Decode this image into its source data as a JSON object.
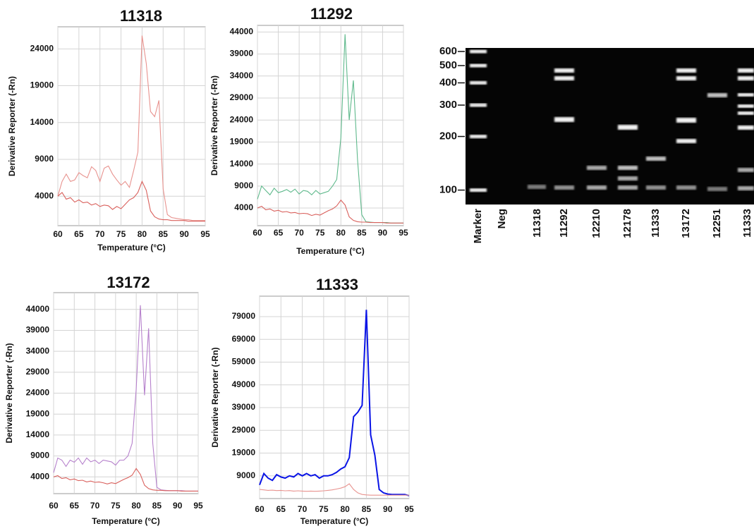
{
  "chart_data": [
    {
      "type": "line",
      "title": "11318",
      "y_label": "Derivative Reporter (-Rn)",
      "x_label": "Temperature (°C)",
      "x": [
        60,
        61,
        62,
        63,
        64,
        65,
        66,
        67,
        68,
        69,
        70,
        71,
        72,
        73,
        74,
        75,
        76,
        77,
        78,
        79,
        80,
        81,
        82,
        83,
        84,
        85,
        86,
        87,
        88,
        89,
        90,
        91,
        92,
        93,
        94,
        95
      ],
      "series": [
        {
          "color": "#e8938f",
          "values": [
            4000,
            6000,
            7000,
            6000,
            6200,
            7200,
            6800,
            6500,
            8000,
            7500,
            6000,
            7800,
            8100,
            7000,
            6200,
            5500,
            6000,
            5200,
            7500,
            10000,
            25800,
            22000,
            15500,
            14800,
            17000,
            5000,
            1500,
            1100,
            1000,
            900,
            800,
            800,
            700,
            700,
            700,
            700
          ]
        },
        {
          "color": "#d9605c",
          "values": [
            4000,
            4500,
            3600,
            3800,
            3200,
            3500,
            3100,
            3200,
            2800,
            3000,
            2600,
            2800,
            2700,
            2200,
            2600,
            2300,
            2900,
            3500,
            3800,
            4500,
            6000,
            4800,
            2000,
            1200,
            900,
            800,
            800,
            700,
            700,
            700,
            700,
            600,
            600,
            600,
            600,
            600
          ]
        }
      ],
      "xlim": [
        60,
        95
      ],
      "ylim": [
        0,
        27000
      ],
      "xticks": [
        60,
        65,
        70,
        75,
        80,
        85,
        90,
        95
      ],
      "yticks": [
        4000,
        9000,
        14000,
        19000,
        24000
      ],
      "grid": true
    },
    {
      "type": "line",
      "title": "11292",
      "y_label": "Derivative  Reporter (-Rn)",
      "x_label": "Temperature (°C)",
      "x": [
        60,
        61,
        62,
        63,
        64,
        65,
        66,
        67,
        68,
        69,
        70,
        71,
        72,
        73,
        74,
        75,
        76,
        77,
        78,
        79,
        80,
        81,
        82,
        83,
        84,
        85,
        86,
        87,
        88,
        89,
        90,
        91,
        92,
        93,
        94,
        95
      ],
      "series": [
        {
          "color": "#5fb98c",
          "values": [
            6000,
            9000,
            8000,
            7000,
            8500,
            7500,
            7800,
            8200,
            7600,
            8300,
            7200,
            8000,
            7800,
            7000,
            8000,
            7200,
            7500,
            7800,
            9000,
            10500,
            20000,
            43500,
            24000,
            33000,
            15000,
            2500,
            900,
            800,
            700,
            700,
            700,
            700,
            600,
            600,
            600,
            600
          ]
        },
        {
          "color": "#d9605c",
          "values": [
            4000,
            4400,
            3600,
            3800,
            3300,
            3500,
            3100,
            3200,
            2900,
            3000,
            2700,
            2800,
            2700,
            2300,
            2600,
            2400,
            2900,
            3400,
            3800,
            4500,
            5800,
            4700,
            2000,
            1200,
            900,
            800,
            800,
            700,
            700,
            700,
            700,
            600,
            600,
            600,
            600,
            600
          ]
        }
      ],
      "xlim": [
        60,
        95
      ],
      "ylim": [
        0,
        45500
      ],
      "xticks": [
        60,
        65,
        70,
        75,
        80,
        85,
        90,
        95
      ],
      "yticks": [
        4000,
        9000,
        14000,
        19000,
        24000,
        29000,
        34000,
        39000,
        44000
      ],
      "grid": true
    },
    {
      "type": "line",
      "title": "13172",
      "y_label": "Derivative Reporter (-Rn)",
      "x_label": "Temperature (°C)",
      "x": [
        60,
        61,
        62,
        63,
        64,
        65,
        66,
        67,
        68,
        69,
        70,
        71,
        72,
        73,
        74,
        75,
        76,
        77,
        78,
        79,
        80,
        81,
        82,
        83,
        84,
        85,
        86,
        87,
        88,
        89,
        90,
        91,
        92,
        93,
        94,
        95
      ],
      "series": [
        {
          "color": "#b681cc",
          "values": [
            5000,
            8500,
            8000,
            6500,
            8000,
            7500,
            8500,
            7000,
            8500,
            7600,
            8000,
            7200,
            8000,
            7800,
            7600,
            6800,
            8000,
            8000,
            9000,
            12000,
            25000,
            45000,
            23500,
            39500,
            12000,
            1500,
            900,
            800,
            700,
            700,
            700,
            700,
            600,
            600,
            600,
            600
          ]
        },
        {
          "color": "#d9605c",
          "values": [
            4000,
            4300,
            3600,
            3800,
            3300,
            3500,
            3100,
            3200,
            2800,
            3000,
            2700,
            2800,
            2600,
            2300,
            2600,
            2400,
            2900,
            3400,
            3800,
            4400,
            6000,
            4600,
            2000,
            1200,
            900,
            800,
            800,
            700,
            700,
            700,
            700,
            600,
            600,
            600,
            600,
            600
          ]
        }
      ],
      "xlim": [
        60,
        95
      ],
      "ylim": [
        0,
        48000
      ],
      "xticks": [
        60,
        65,
        70,
        75,
        80,
        85,
        90,
        95
      ],
      "yticks": [
        4000,
        9000,
        14000,
        19000,
        24000,
        29000,
        34000,
        39000,
        44000
      ],
      "grid": true
    },
    {
      "type": "line",
      "title": "11333",
      "y_label": "Derivative Reporter (-Rn)",
      "x_label": "Temperature (°C)",
      "x": [
        60,
        61,
        62,
        63,
        64,
        65,
        66,
        67,
        68,
        69,
        70,
        71,
        72,
        73,
        74,
        75,
        76,
        77,
        78,
        79,
        80,
        81,
        82,
        83,
        84,
        85,
        86,
        87,
        88,
        89,
        90,
        91,
        92,
        93,
        94,
        95
      ],
      "series": [
        {
          "color": "#0a14e6",
          "width": 2,
          "values": [
            5000,
            10000,
            8000,
            7000,
            9500,
            8500,
            8000,
            9000,
            8500,
            10000,
            9000,
            10000,
            9000,
            9500,
            8000,
            9000,
            9000,
            9500,
            10500,
            12000,
            13000,
            17000,
            35000,
            37000,
            40000,
            82000,
            27000,
            18000,
            3000,
            1500,
            1000,
            800,
            800,
            800,
            800,
            300
          ]
        },
        {
          "color": "#e8938f",
          "values": [
            3000,
            2800,
            2600,
            2700,
            2500,
            2600,
            2400,
            2500,
            2300,
            2400,
            2300,
            2200,
            2300,
            2200,
            2300,
            2400,
            2600,
            2800,
            3200,
            3600,
            4200,
            5500,
            3000,
            1500,
            800,
            600,
            500,
            500,
            500,
            500,
            500,
            500,
            500,
            500,
            500,
            500
          ]
        }
      ],
      "xlim": [
        60,
        95
      ],
      "ylim": [
        -1000,
        88000
      ],
      "xticks": [
        60,
        65,
        70,
        75,
        80,
        85,
        90,
        95
      ],
      "yticks": [
        9000,
        19000,
        29000,
        39000,
        49000,
        59000,
        69000,
        79000
      ],
      "grid": true
    }
  ],
  "gel": {
    "marker_labels": [
      600,
      500,
      400,
      300,
      200,
      100
    ],
    "ylim": [
      83,
      628
    ],
    "log": true,
    "lanes": [
      "Marker",
      "Neg",
      "11318",
      "11292",
      "12210",
      "12178",
      "11333",
      "13172",
      "12251",
      "11333"
    ]
  }
}
